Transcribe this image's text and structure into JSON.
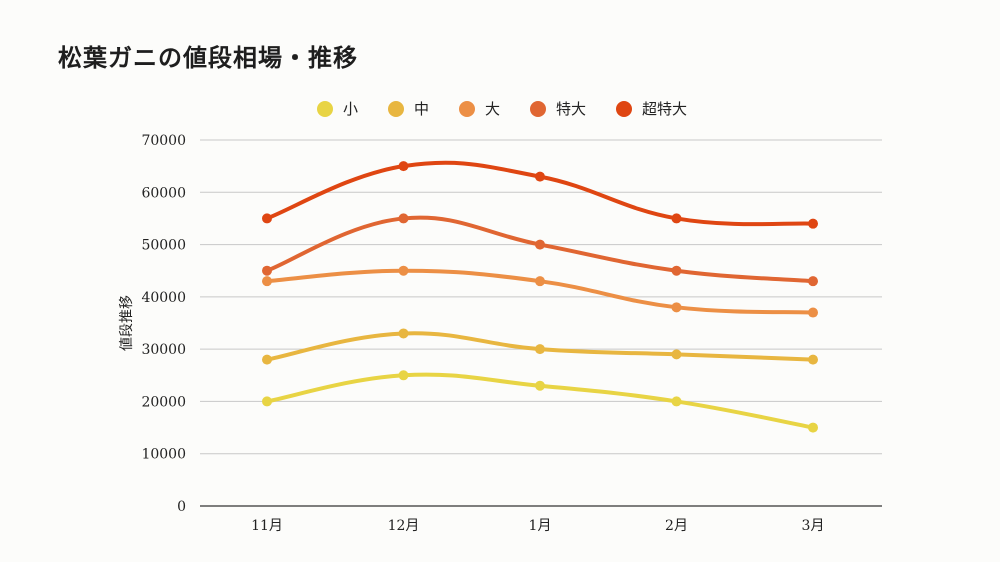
{
  "chart_data": {
    "type": "line",
    "title": "松葉ガニの値段相場・推移",
    "xlabel": "",
    "ylabel": "値段推移",
    "categories": [
      "11月",
      "12月",
      "1月",
      "2月",
      "3月"
    ],
    "ylim": [
      0,
      70000
    ],
    "yticks": [
      0,
      10000,
      20000,
      30000,
      40000,
      50000,
      60000,
      70000
    ],
    "grid": true,
    "legend_position": "top-center",
    "series": [
      {
        "name": "小",
        "color": "#e8d444",
        "values": [
          20000,
          25000,
          23000,
          20000,
          15000
        ]
      },
      {
        "name": "中",
        "color": "#e8b640",
        "values": [
          28000,
          33000,
          30000,
          29000,
          28000
        ]
      },
      {
        "name": "大",
        "color": "#ec8f45",
        "values": [
          43000,
          45000,
          43000,
          38000,
          37000
        ]
      },
      {
        "name": "特大",
        "color": "#e06632",
        "values": [
          45000,
          55000,
          50000,
          45000,
          43000
        ]
      },
      {
        "name": "超特大",
        "color": "#df4612",
        "values": [
          55000,
          65000,
          63000,
          55000,
          54000
        ]
      }
    ]
  }
}
